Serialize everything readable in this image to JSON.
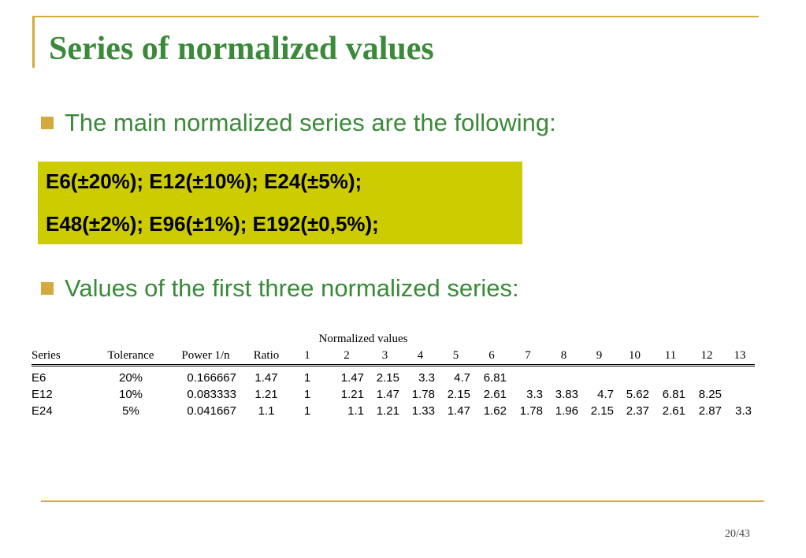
{
  "slide": {
    "title": "Series of  normalized values",
    "bullets": [
      "The main normalized series are the following:",
      "Values of the first three normalized series:"
    ],
    "series_box": {
      "line1": "E6(±20%); E12(±10%); E24(±5%);",
      "line2": "E48(±2%); E96(±1%); E192(±0,5%);"
    },
    "page_number": "20/43"
  },
  "table": {
    "group_header": "Normalized values",
    "columns": [
      "Series",
      "Tolerance",
      "Power 1/n",
      "Ratio",
      "1",
      "2",
      "3",
      "4",
      "5",
      "6",
      "7",
      "8",
      "9",
      "10",
      "11",
      "12",
      "13"
    ],
    "rows": [
      [
        "E6",
        "20%",
        "0.166667",
        "1.47",
        "1",
        "1.47",
        "2.15",
        "3.3",
        "4.7",
        "6.81",
        "",
        "",
        "",
        "",
        "",
        "",
        ""
      ],
      [
        "E12",
        "10%",
        "0.083333",
        "1.21",
        "1",
        "1.21",
        "1.47",
        "1.78",
        "2.15",
        "2.61",
        "3.3",
        "3.83",
        "4.7",
        "5.62",
        "6.81",
        "8.25",
        ""
      ],
      [
        "E24",
        "5%",
        "0.041667",
        "1.1",
        "1",
        "1.1",
        "1.21",
        "1.33",
        "1.47",
        "1.62",
        "1.78",
        "1.96",
        "2.15",
        "2.37",
        "2.61",
        "2.87",
        "3.3"
      ]
    ]
  },
  "colors": {
    "accent": "#d4aa3f",
    "text_green": "#3a8a3a",
    "box_fill": "#cccc00"
  }
}
